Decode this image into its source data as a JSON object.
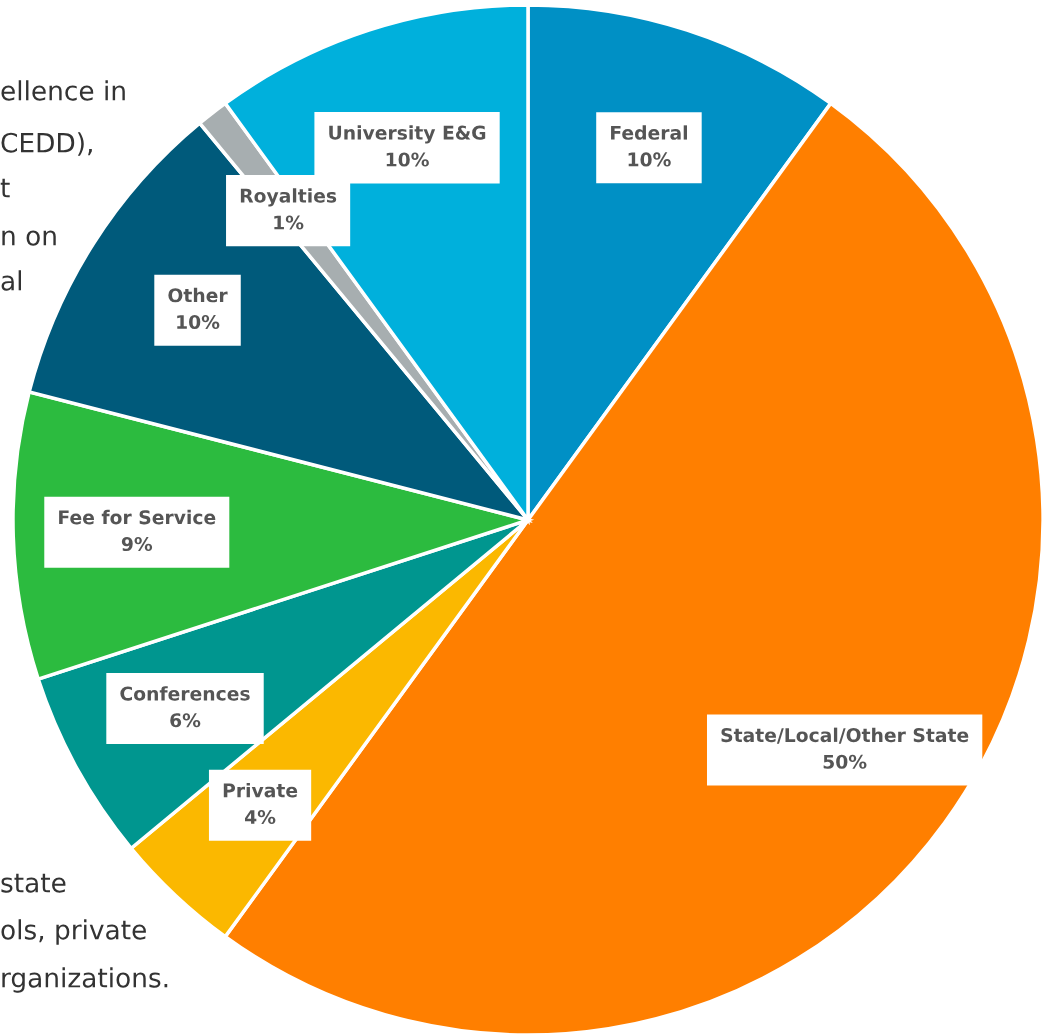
{
  "chart_data": {
    "type": "pie",
    "categories": [
      "Federal",
      "State/Local/Other State",
      "Private",
      "Conferences",
      "Fee for Service",
      "Other",
      "Royalties",
      "University E&G"
    ],
    "values": [
      10,
      50,
      4,
      6,
      9,
      10,
      1,
      10
    ],
    "colors": [
      "#0090c5",
      "#ff7f00",
      "#fbb800",
      "#00968f",
      "#2cbb3f",
      "#005a7b",
      "#a7aeb0",
      "#00b0dc"
    ],
    "value_labels": [
      "10%",
      "50%",
      "4%",
      "6%",
      "9%",
      "10%",
      "1%",
      "10%"
    ],
    "annotations": [
      "ellence in",
      "CEDD),",
      "t",
      "n on",
      "al",
      "state",
      "ols, private",
      "rganizations."
    ]
  }
}
